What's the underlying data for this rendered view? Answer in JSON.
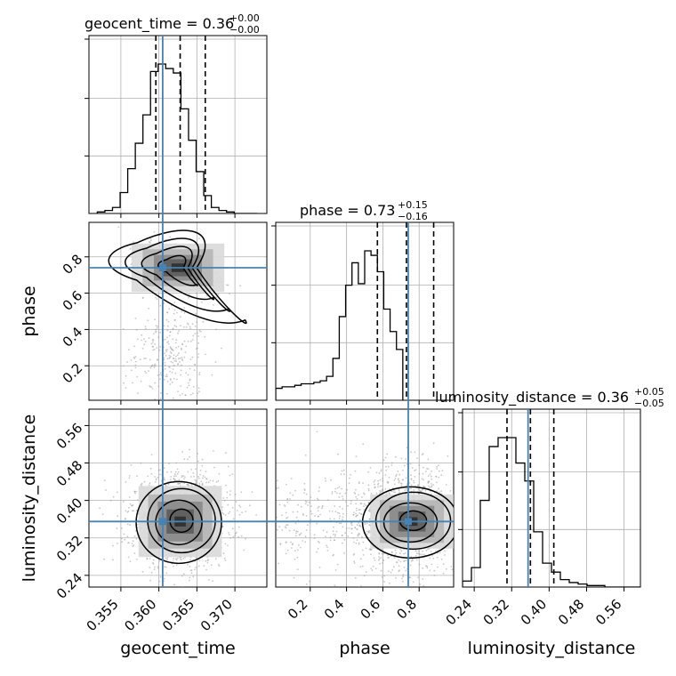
{
  "chart_data": {
    "type": "corner",
    "params": [
      "geocent_time",
      "phase",
      "luminosity_distance"
    ],
    "axis_labels": {
      "geocent_time": "geocent_time",
      "phase": "phase",
      "luminosity_distance": "luminosity_distance"
    },
    "titles": [
      {
        "param": "geocent_time",
        "label": "geocent_time = 0.36",
        "sup": "+0.00",
        "sub": "−0.00"
      },
      {
        "param": "phase",
        "label": "phase = 0.73",
        "sup": "+0.15",
        "sub": "−0.16"
      },
      {
        "param": "luminosity_distance",
        "label": "luminosity_distance = 0.36",
        "sup": "+0.05",
        "sub": "−0.05"
      }
    ],
    "ranges": {
      "geocent_time": [
        0.3508,
        0.3742
      ],
      "phase": [
        0.01,
        0.99
      ],
      "luminosity_distance": [
        0.215,
        0.595
      ]
    },
    "ticks": {
      "geocent_time": [
        "0.355",
        "0.360",
        "0.365",
        "0.370"
      ],
      "phase": [
        "0.2",
        "0.4",
        "0.6",
        "0.8"
      ],
      "luminosity_distance": [
        "0.24",
        "0.32",
        "0.40",
        "0.48",
        "0.56"
      ]
    },
    "truths": {
      "geocent_time": 0.3605,
      "phase": 0.74,
      "luminosity_distance": 0.355
    },
    "quantiles": {
      "geocent_time": [
        0.3596,
        0.3628,
        0.3661
      ],
      "phase": [
        0.57,
        0.73,
        0.88
      ],
      "luminosity_distance": [
        0.31,
        0.36,
        0.41
      ]
    },
    "histograms": {
      "geocent_time": {
        "edges_start": 0.3519,
        "bin_width": 0.001,
        "counts": [
          1,
          2,
          4,
          14,
          30,
          47,
          66,
          95,
          100,
          97,
          94,
          70,
          49,
          28,
          12,
          4,
          2,
          1,
          0,
          0,
          0
        ]
      },
      "phase": {
        "edges_start": 0.01,
        "bin_width": 0.035,
        "counts": [
          8,
          9,
          9,
          10,
          11,
          11,
          12,
          13,
          16,
          28,
          56,
          77,
          92,
          78,
          100,
          97,
          86,
          61,
          46,
          34
        ]
      },
      "luminosity_distance": {
        "edges_start": 0.215,
        "bin_width": 0.019,
        "counts": [
          4,
          13,
          58,
          94,
          100,
          100,
          83,
          71,
          37,
          16,
          10,
          5,
          3,
          2,
          1,
          1,
          0,
          0,
          0,
          0
        ]
      }
    },
    "grid": true
  }
}
